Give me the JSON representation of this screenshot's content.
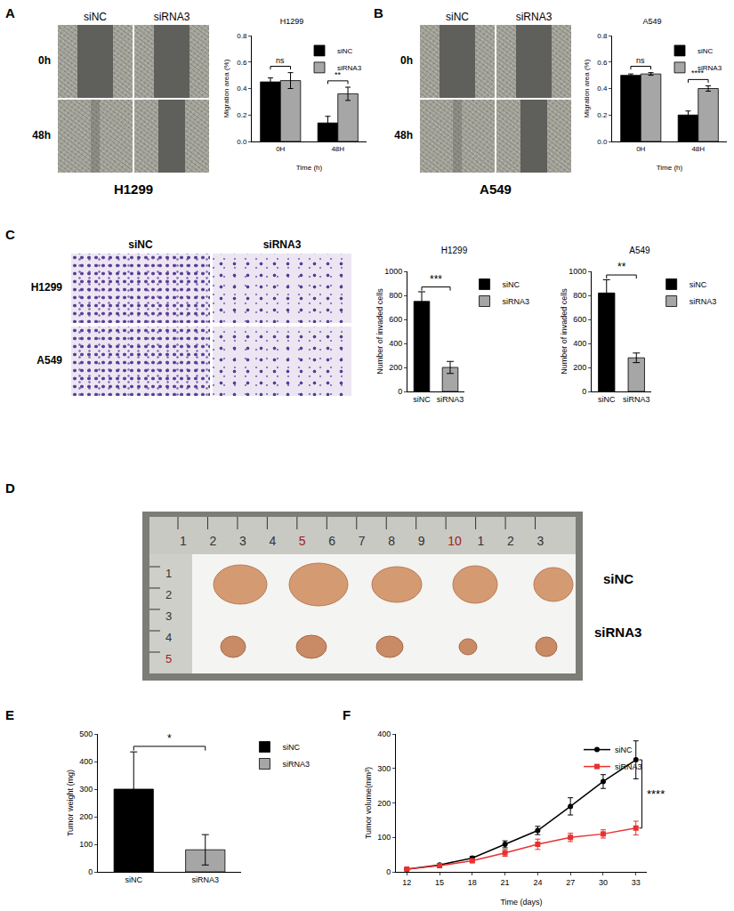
{
  "panel_labels": [
    "A",
    "B",
    "C",
    "D",
    "E",
    "F"
  ],
  "wound_healing": [
    {
      "cell_line": "H1299",
      "columns": [
        "siNC",
        "siRNA3"
      ],
      "rows": [
        "0h",
        "48h"
      ]
    },
    {
      "cell_line": "A549",
      "columns": [
        "siNC",
        "siRNA3"
      ],
      "rows": [
        "0h",
        "48h"
      ]
    }
  ],
  "transwell": {
    "columns": [
      "siNC",
      "siRNA3"
    ],
    "rows": [
      "H1299",
      "A549"
    ]
  },
  "tumor_photo": {
    "groups": [
      "siNC",
      "siRNA3"
    ],
    "ruler_top": [
      "1",
      "2",
      "3",
      "4",
      "5",
      "6",
      "7",
      "8",
      "9",
      "10",
      "1",
      "2",
      "3"
    ],
    "ruler_side": [
      "1",
      "2",
      "3",
      "4",
      "5"
    ]
  },
  "chart_data": [
    {
      "type": "bar",
      "title": "H1299",
      "x_label": "Time (h)",
      "y_label": "Migration area (%)",
      "categories": [
        "0H",
        "48H"
      ],
      "series": [
        {
          "name": "siNC",
          "color": "#000000",
          "values": [
            0.45,
            0.14
          ],
          "errors": [
            0.03,
            0.05
          ]
        },
        {
          "name": "siRNA3",
          "color": "#a6a6a6",
          "values": [
            0.46,
            0.36
          ],
          "errors": [
            0.06,
            0.05
          ]
        }
      ],
      "ylim": [
        0,
        0.8
      ],
      "yticks": [
        {
          "value": 0,
          "label": "0.0"
        },
        {
          "value": 0.2,
          "label": "0.2"
        },
        {
          "value": 0.4,
          "label": "0.4"
        },
        {
          "value": 0.6,
          "label": "0.6"
        },
        {
          "value": 0.8,
          "label": "0.8"
        }
      ],
      "legend": "top right",
      "annotations": [
        {
          "at": "0H",
          "text": "ns"
        },
        {
          "at": "48H",
          "text": "**"
        }
      ]
    },
    {
      "type": "bar",
      "title": "A549",
      "x_label": "Time (h)",
      "y_label": "Migration area (%)",
      "categories": [
        "0H",
        "48H"
      ],
      "series": [
        {
          "name": "siNC",
          "color": "#000000",
          "values": [
            0.5,
            0.2
          ],
          "errors": [
            0.01,
            0.03
          ]
        },
        {
          "name": "siRNA3",
          "color": "#a6a6a6",
          "values": [
            0.51,
            0.4
          ],
          "errors": [
            0.01,
            0.02
          ]
        }
      ],
      "ylim": [
        0,
        0.8
      ],
      "yticks": [
        {
          "value": 0,
          "label": "0.0"
        },
        {
          "value": 0.2,
          "label": "0.2"
        },
        {
          "value": 0.4,
          "label": "0.4"
        },
        {
          "value": 0.6,
          "label": "0.6"
        },
        {
          "value": 0.8,
          "label": "0.8"
        }
      ],
      "legend": "top right",
      "annotations": [
        {
          "at": "0H",
          "text": "ns"
        },
        {
          "at": "48H",
          "text": "****"
        }
      ]
    },
    {
      "type": "bar",
      "title": "H1299",
      "y_label": "Number of invaded cells",
      "categories": [
        "siNC",
        "siRNA3"
      ],
      "colors": [
        "#000000",
        "#a6a6a6"
      ],
      "values": [
        750,
        200
      ],
      "errors": [
        80,
        50
      ],
      "ylim": [
        0,
        1000
      ],
      "yticks": [
        0,
        200,
        400,
        600,
        800,
        1000
      ],
      "legend": "right",
      "annotations": [
        {
          "from": "siNC",
          "to": "siRNA3",
          "text": "***"
        }
      ]
    },
    {
      "type": "bar",
      "title": "A549",
      "y_label": "Number of invaded cells",
      "categories": [
        "siNC",
        "siRNA3"
      ],
      "colors": [
        "#000000",
        "#a6a6a6"
      ],
      "values": [
        820,
        280
      ],
      "errors": [
        110,
        40
      ],
      "ylim": [
        0,
        1000
      ],
      "yticks": [
        0,
        200,
        400,
        600,
        800,
        1000
      ],
      "legend": "right",
      "annotations": [
        {
          "from": "siNC",
          "to": "siRNA3",
          "text": "**"
        }
      ]
    },
    {
      "type": "bar",
      "y_label": "Tumor weight (mg)",
      "categories": [
        "siNC",
        "siRNA3"
      ],
      "colors": [
        "#000000",
        "#a6a6a6"
      ],
      "values": [
        300,
        80
      ],
      "errors": [
        135,
        55
      ],
      "ylim": [
        0,
        500
      ],
      "yticks": [
        0,
        100,
        200,
        300,
        400,
        500
      ],
      "legend": "right",
      "annotations": [
        {
          "from": "siNC",
          "to": "siRNA3",
          "text": "*"
        }
      ]
    },
    {
      "type": "line",
      "x_label": "Time (days)",
      "y_label": "Tumor volume(mm³)",
      "x": [
        12,
        15,
        18,
        21,
        24,
        27,
        30,
        33
      ],
      "xlim": [
        11,
        34
      ],
      "xticks": [
        12,
        15,
        18,
        21,
        24,
        27,
        30,
        33
      ],
      "series": [
        {
          "name": "siNC",
          "color": "#000000",
          "marker": "circle",
          "values": [
            8,
            20,
            40,
            80,
            120,
            190,
            262,
            325
          ],
          "errors": [
            2,
            3,
            5,
            10,
            12,
            25,
            20,
            55
          ]
        },
        {
          "name": "siRNA3",
          "color": "#e8312f",
          "marker": "square",
          "values": [
            8,
            18,
            32,
            55,
            80,
            100,
            110,
            127
          ],
          "errors": [
            2,
            3,
            4,
            10,
            15,
            12,
            12,
            20
          ]
        }
      ],
      "ylim": [
        0,
        400
      ],
      "yticks": [
        0,
        100,
        200,
        300,
        400
      ],
      "legend": "top right",
      "annotations": [
        {
          "at": 33,
          "text": "****"
        }
      ]
    }
  ]
}
